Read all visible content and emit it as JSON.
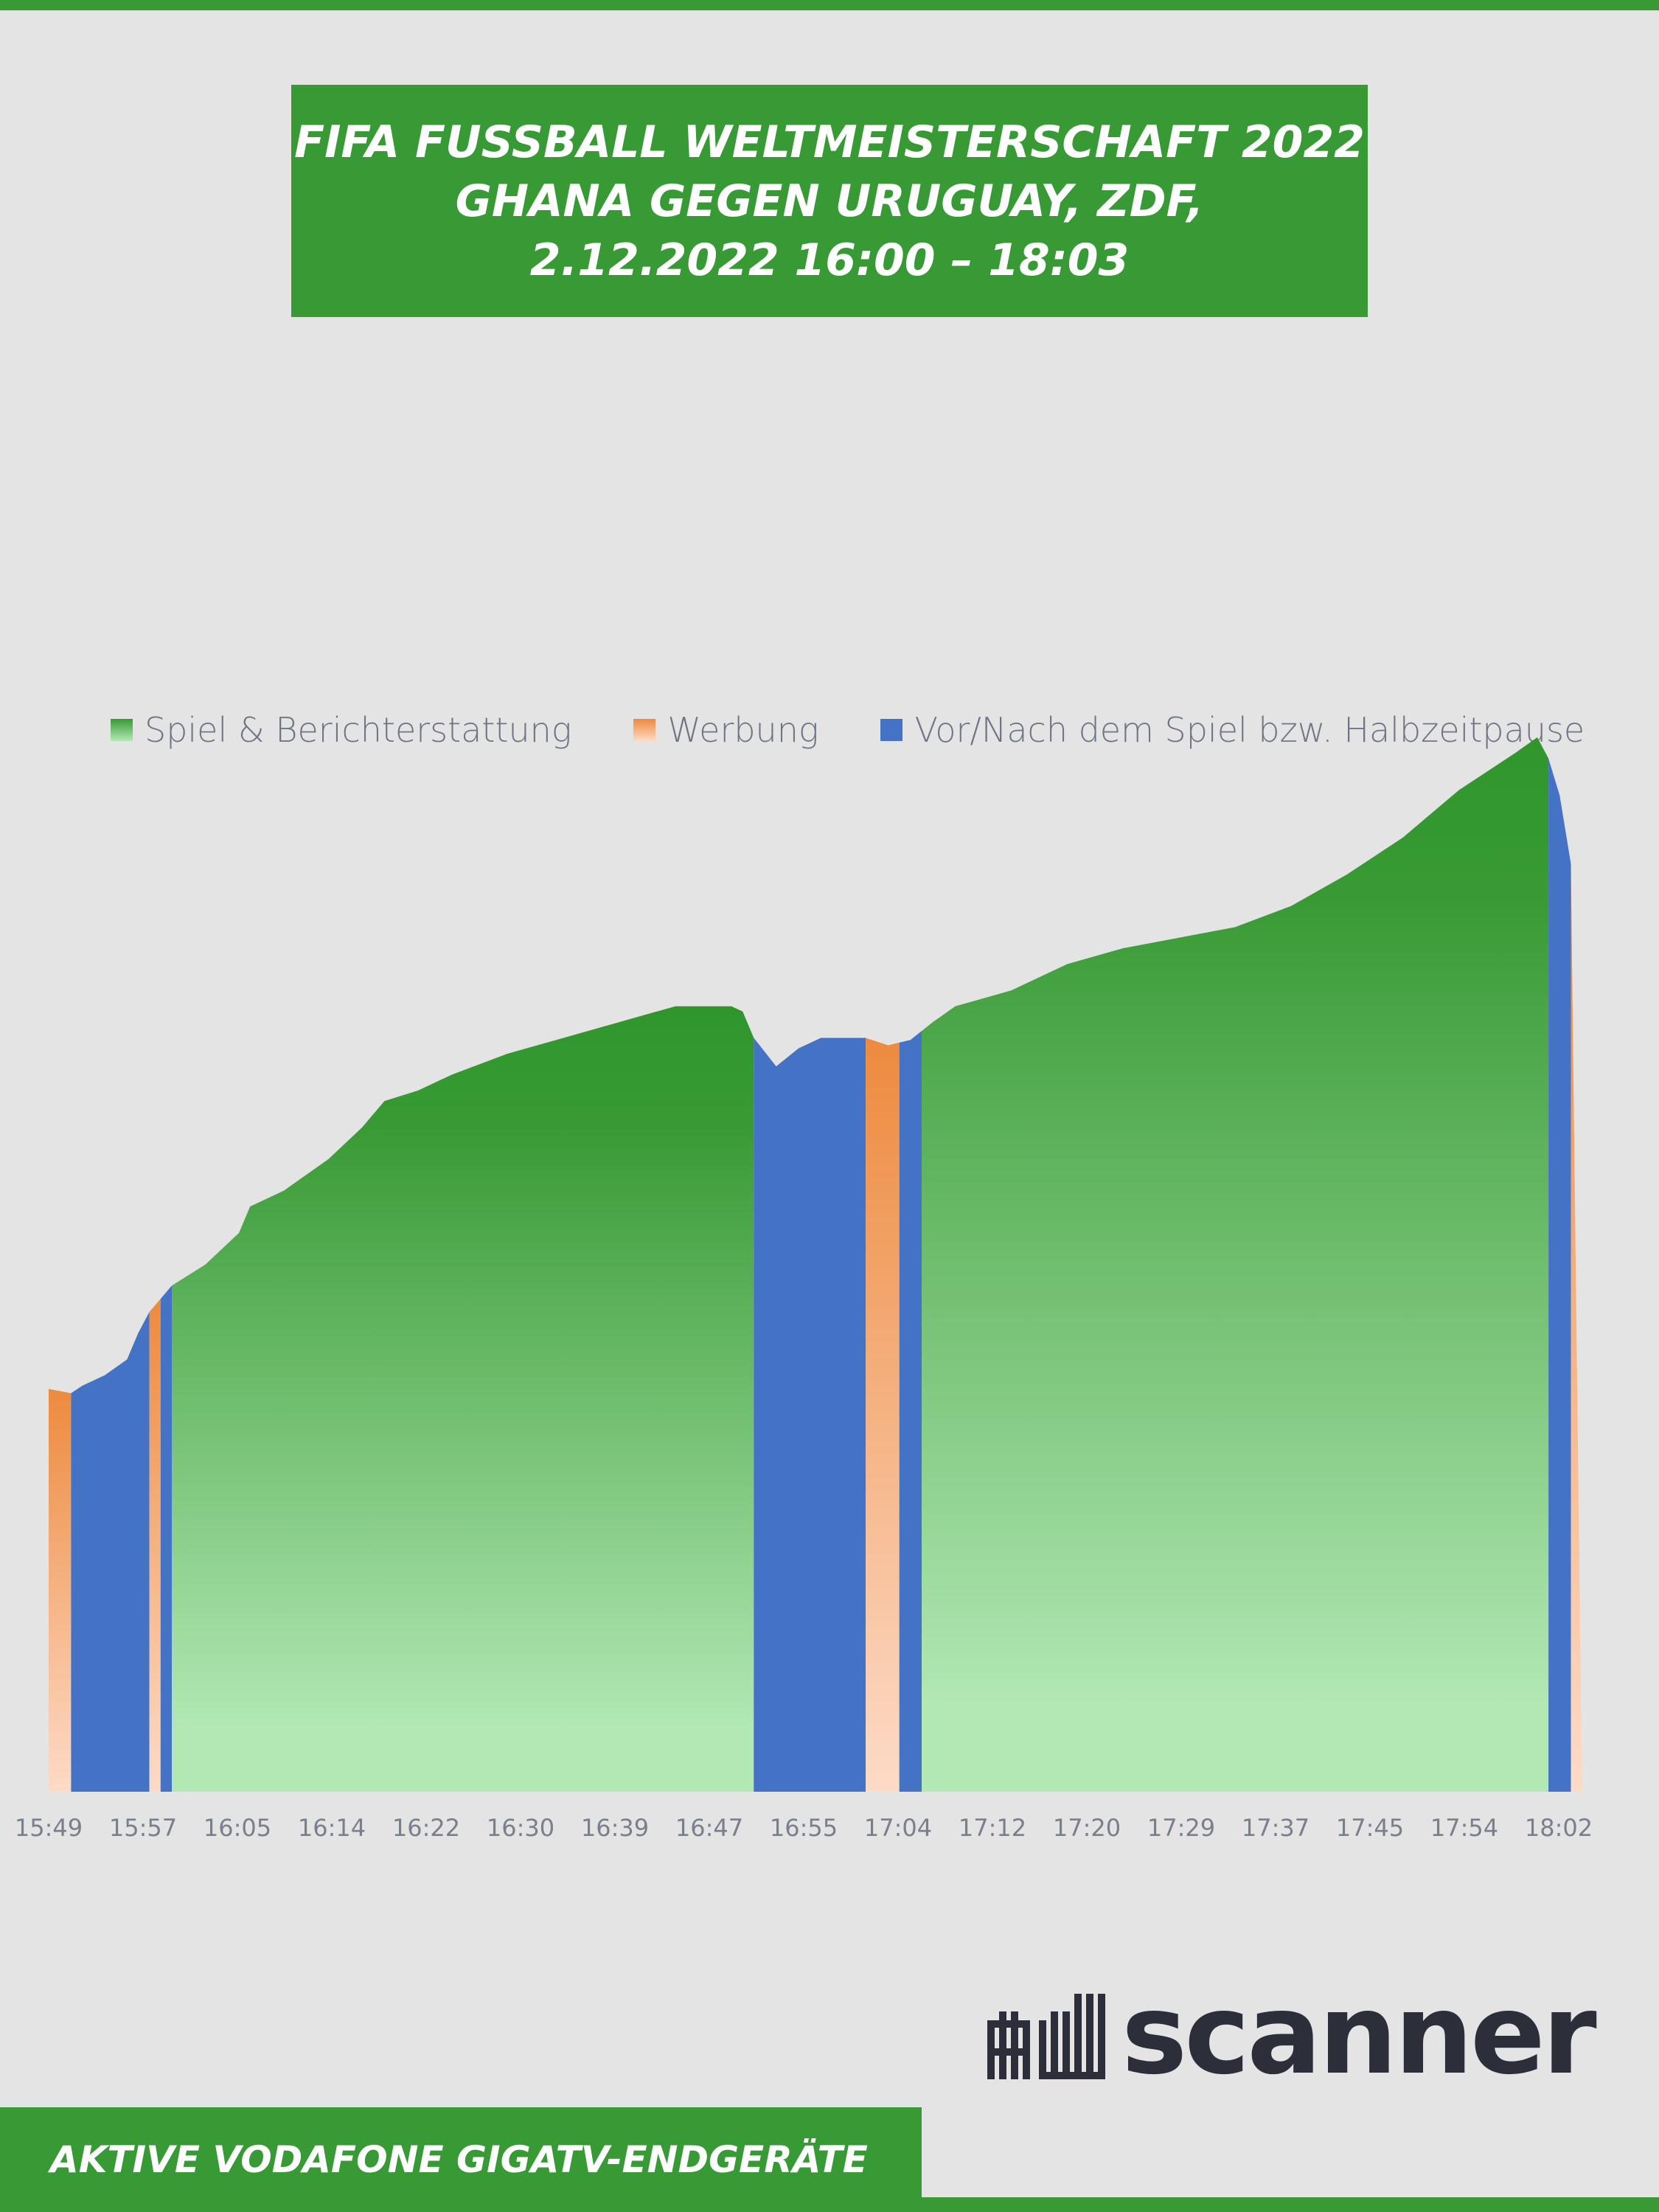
{
  "header": {
    "title": "FIFA FUSSBALL WELTMEISTERSCHAFT 2022\nGHANA GEGEN URUGUAY, ZDF,\n2.12.2022 16:00 – 18:03"
  },
  "footer": {
    "label": "AKTIVE VODAFONE GIGATV-ENDGERÄTE"
  },
  "logo": {
    "name": "adscanner"
  },
  "colors": {
    "brand_green": "#389a34",
    "game": "#389a34",
    "game_light": "#b2e8b4",
    "ad": "#ed8a3e",
    "ad_light": "#fddbc7",
    "pre_post": "#4472c4",
    "axis_text": "#7a7f8c"
  },
  "legend": [
    {
      "key": "game",
      "label": "Spiel & Berichterstattung"
    },
    {
      "key": "ad",
      "label": "Werbung"
    },
    {
      "key": "pre_post",
      "label": "Vor/Nach dem Spiel bzw. Halbzeitpause"
    }
  ],
  "chart_data": {
    "type": "area",
    "title": "",
    "xlabel": "",
    "ylabel": "",
    "y_axis_visible": false,
    "grid": false,
    "legend_position": "top",
    "x_range": [
      "15:49",
      "18:08"
    ],
    "ylim": [
      0,
      100
    ],
    "x_ticks": [
      "15:49",
      "15:57",
      "16:05",
      "16:14",
      "16:22",
      "16:30",
      "16:39",
      "16:47",
      "16:55",
      "17:04",
      "17:12",
      "17:20",
      "17:29",
      "17:37",
      "17:45",
      "17:54",
      "18:02"
    ],
    "series": [
      {
        "name": "Spiel & Berichterstattung",
        "values": []
      },
      {
        "name": "Werbung",
        "values": []
      },
      {
        "name": "Vor/Nach dem Spiel bzw. Halbzeitpause",
        "values": []
      }
    ],
    "points": [
      [
        "15:49",
        38.2
      ],
      [
        "15:51",
        37.8
      ],
      [
        "15:52",
        38.5
      ],
      [
        "15:54",
        39.5
      ],
      [
        "15:56",
        41.0
      ],
      [
        "15:57",
        43.5
      ],
      [
        "15:58",
        45.5
      ],
      [
        "16:00",
        48.0
      ],
      [
        "16:03",
        50.0
      ],
      [
        "16:06",
        53.0
      ],
      [
        "16:07",
        55.5
      ],
      [
        "16:10",
        57.0
      ],
      [
        "16:14",
        60.0
      ],
      [
        "16:17",
        63.0
      ],
      [
        "16:19",
        65.5
      ],
      [
        "16:22",
        66.5
      ],
      [
        "16:25",
        68.0
      ],
      [
        "16:30",
        70.0
      ],
      [
        "16:35",
        71.5
      ],
      [
        "16:40",
        73.0
      ],
      [
        "16:45",
        74.5
      ],
      [
        "16:50",
        74.5
      ],
      [
        "16:51",
        74.0
      ],
      [
        "16:52",
        71.5
      ],
      [
        "16:54",
        68.8
      ],
      [
        "16:56",
        70.5
      ],
      [
        "16:58",
        71.5
      ],
      [
        "17:00",
        71.5
      ],
      [
        "17:02",
        71.5
      ],
      [
        "17:04",
        70.8
      ],
      [
        "17:06",
        71.3
      ],
      [
        "17:08",
        73.0
      ],
      [
        "17:10",
        74.5
      ],
      [
        "17:15",
        76.0
      ],
      [
        "17:20",
        78.5
      ],
      [
        "17:25",
        80.0
      ],
      [
        "17:30",
        81.0
      ],
      [
        "17:35",
        82.0
      ],
      [
        "17:40",
        84.0
      ],
      [
        "17:45",
        87.0
      ],
      [
        "17:50",
        90.5
      ],
      [
        "17:55",
        95.0
      ],
      [
        "18:00",
        98.5
      ],
      [
        "18:02",
        100.0
      ],
      [
        "18:03",
        98.0
      ],
      [
        "18:04",
        94.5
      ],
      [
        "18:05",
        88.0
      ],
      [
        "18:06",
        0.0
      ]
    ],
    "segments": [
      {
        "from": "15:49",
        "to": "15:51",
        "type": "ad"
      },
      {
        "from": "15:51",
        "to": "15:58",
        "type": "pre_post"
      },
      {
        "from": "15:58",
        "to": "15:59",
        "type": "ad"
      },
      {
        "from": "15:59",
        "to": "16:00",
        "type": "pre_post"
      },
      {
        "from": "16:00",
        "to": "16:52",
        "type": "game"
      },
      {
        "from": "16:52",
        "to": "17:02",
        "type": "pre_post"
      },
      {
        "from": "17:02",
        "to": "17:05",
        "type": "ad"
      },
      {
        "from": "17:05",
        "to": "17:07",
        "type": "pre_post"
      },
      {
        "from": "17:07",
        "to": "18:03",
        "type": "game"
      },
      {
        "from": "18:03",
        "to": "18:05",
        "type": "pre_post"
      },
      {
        "from": "18:05",
        "to": "18:06",
        "type": "ad"
      }
    ]
  }
}
